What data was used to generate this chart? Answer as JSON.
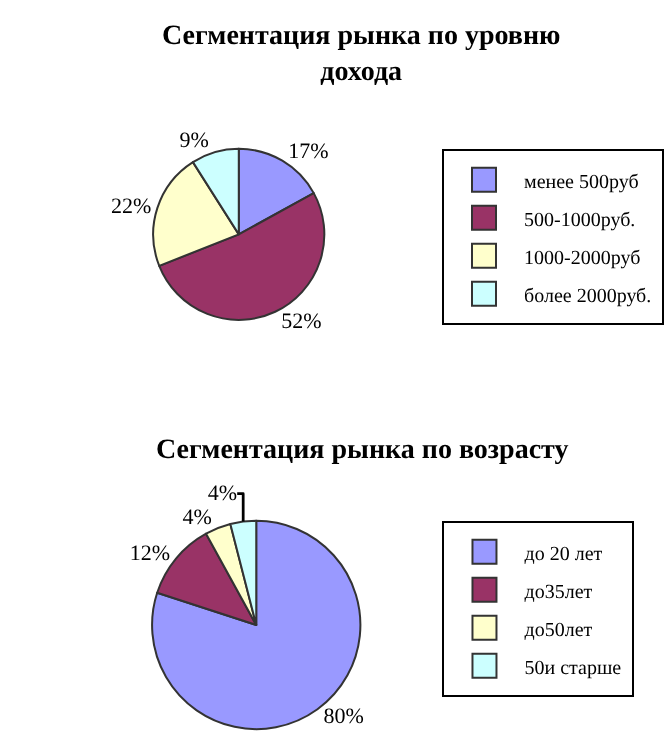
{
  "chart_data": [
    {
      "type": "pie",
      "title": "Сегментация рынка по уровню дохода",
      "categories": [
        "менее 500руб",
        "500-1000руб.",
        "1000-2000руб",
        "более 2000руб."
      ],
      "values": [
        17,
        52,
        22,
        9
      ],
      "value_labels": [
        "17%",
        "52%",
        "22%",
        "9%"
      ],
      "colors": [
        "#9999ff",
        "#993366",
        "#ffffcc",
        "#ccffff"
      ],
      "legend": "right"
    },
    {
      "type": "pie",
      "title": "Сегментация рынка по возрасту",
      "categories": [
        "до 20 лет",
        "до35лет",
        "до50лет",
        "50и старше"
      ],
      "values": [
        80,
        12,
        4,
        4
      ],
      "value_labels": [
        "80%",
        "12%",
        "4%",
        "4%"
      ],
      "colors": [
        "#9999ff",
        "#993366",
        "#ffffcc",
        "#ccffff"
      ],
      "legend": "right"
    }
  ]
}
